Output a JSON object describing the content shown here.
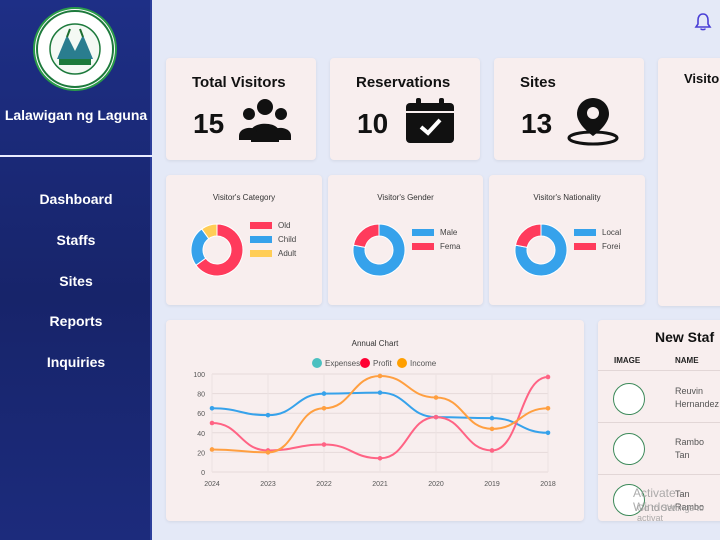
{
  "sidebar": {
    "brand": "Lalawigan ng Laguna",
    "seal_text": "SAGISAG NG LALAWIGAN NG LAGUNA",
    "nav": [
      "Dashboard",
      "Staffs",
      "Sites",
      "Reports",
      "Inquiries"
    ]
  },
  "header": {
    "bell_icon": "bell-icon"
  },
  "stats": [
    {
      "title": "Total Visitors",
      "value": "15",
      "icon": "users-icon"
    },
    {
      "title": "Reservations",
      "value": "10",
      "icon": "calendar-check-icon"
    },
    {
      "title": "Sites",
      "value": "13",
      "icon": "location-pin-icon"
    }
  ],
  "side_card_title": "Visitor",
  "colors": {
    "red": "#ff3b5c",
    "blue": "#36a2eb",
    "yellow": "#ffcd56",
    "card": "#f8eeee",
    "sidebar": "#1e2f86"
  },
  "mini_charts": [
    {
      "title": "Visitor's Category",
      "chart_data": {
        "type": "pie",
        "categories": [
          "Old",
          "Child",
          "Adult"
        ],
        "values": [
          65,
          25,
          10
        ],
        "colors": [
          "#ff3b5c",
          "#36a2eb",
          "#ffcd56"
        ]
      }
    },
    {
      "title": "Visitor's Gender",
      "chart_data": {
        "type": "pie",
        "categories": [
          "Male",
          "Female"
        ],
        "values": [
          78,
          22
        ],
        "colors": [
          "#36a2eb",
          "#ff3b5c"
        ]
      },
      "legend_visible": [
        "Male",
        "Fema"
      ]
    },
    {
      "title": "Visitor's Nationality",
      "chart_data": {
        "type": "pie",
        "categories": [
          "Local",
          "Foreign"
        ],
        "values": [
          78,
          22
        ],
        "colors": [
          "#36a2eb",
          "#ff3b5c"
        ]
      },
      "legend_visible": [
        "Local",
        "Forei"
      ]
    }
  ],
  "annual": {
    "title": "Annual Chart",
    "chart_data": {
      "type": "line",
      "x": [
        "2024",
        "2023",
        "2022",
        "2021",
        "2020",
        "2019",
        "2018"
      ],
      "ylim": [
        0,
        100
      ],
      "yticks": [
        "0",
        "20",
        "40",
        "60",
        "80",
        "100"
      ],
      "series": [
        {
          "name": "Expenses",
          "values": [
            65,
            58,
            80,
            81,
            56,
            55,
            40
          ],
          "color": "#36a2eb",
          "legend_color": "#4bc0c0"
        },
        {
          "name": "Profit",
          "values": [
            50,
            22,
            28,
            14,
            56,
            22,
            97
          ],
          "color": "#ff6384",
          "legend_color": "#ff0033"
        },
        {
          "name": "Income",
          "values": [
            23,
            20,
            65,
            98,
            76,
            44,
            65
          ],
          "color": "#ff9f40",
          "legend_color": "#ff9f00"
        }
      ]
    }
  },
  "new_staff": {
    "title": "New Staf",
    "columns": [
      "IMAGE",
      "NAME"
    ],
    "rows": [
      {
        "name": "Reuvin Hernandez"
      },
      {
        "name": "Rambo Tan"
      },
      {
        "name": "Tan Rambo"
      }
    ]
  },
  "watermark": {
    "line1": "Activate Window",
    "line2": "Go to Settings to activat"
  }
}
